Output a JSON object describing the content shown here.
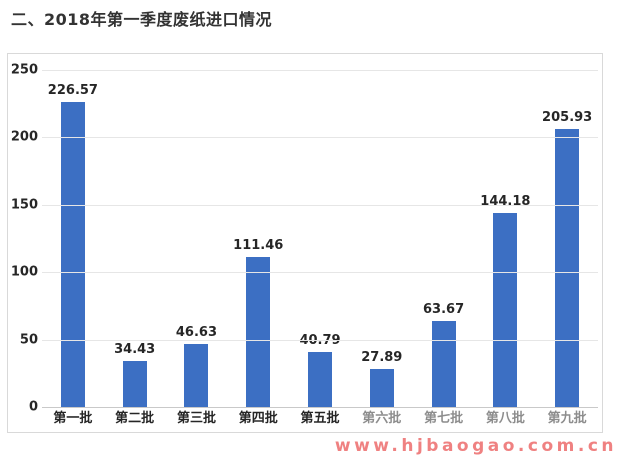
{
  "page": {
    "title": "二、2018年第一季度废纸进口情况",
    "watermark": "www.hjbaogao.com.cn"
  },
  "chart_data": {
    "type": "bar",
    "title": "二、2018年第一季度废纸进口情况",
    "xlabel": "",
    "ylabel": "",
    "categories": [
      "第一批",
      "第二批",
      "第三批",
      "第四批",
      "第五批",
      "第六批",
      "第七批",
      "第八批",
      "第九批"
    ],
    "values": [
      226.57,
      34.43,
      46.63,
      111.46,
      40.79,
      27.89,
      63.67,
      144.18,
      205.93
    ],
    "value_labels": [
      "226.57",
      "34.43",
      "46.63",
      "111.46",
      "40.79",
      "27.89",
      "63.67",
      "144.18",
      "205.93"
    ],
    "ylim": [
      0,
      250
    ],
    "yticks": [
      250,
      200,
      150,
      100,
      50,
      0
    ],
    "grid": true,
    "legend": "none",
    "faded_category_indices": [
      5,
      6,
      7,
      8
    ],
    "colors": {
      "bar": "#3c6fc3",
      "grid_line": "#e6e6e6",
      "baseline": "#c9c9c9",
      "axis_label": "#262626",
      "value_label": "#262626",
      "category_label": "#262626",
      "category_label_faded": "#8d8d8d",
      "chart_border": "#d9d9d9",
      "title_text": "#333333",
      "watermark": "#ef8181"
    }
  }
}
